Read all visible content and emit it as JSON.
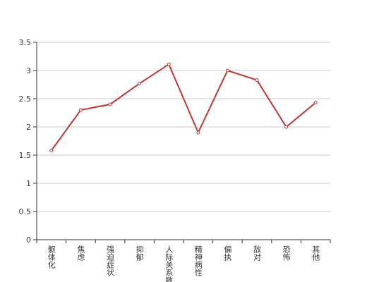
{
  "chart_data": {
    "type": "line",
    "categories": [
      "躯体化",
      "焦虑",
      "强迫症状",
      "抑郁",
      "人际关系敏感",
      "精神病性",
      "偏执",
      "敌对",
      "恐怖",
      "其他"
    ],
    "values": [
      1.58,
      2.3,
      2.4,
      2.77,
      3.11,
      1.9,
      3.0,
      2.83,
      2.0,
      2.43
    ],
    "color": "#c23531",
    "ylim": [
      0,
      3.5
    ],
    "yticks": [
      0,
      0.5,
      1,
      1.5,
      2,
      2.5,
      3,
      3.5
    ],
    "grid": true
  }
}
